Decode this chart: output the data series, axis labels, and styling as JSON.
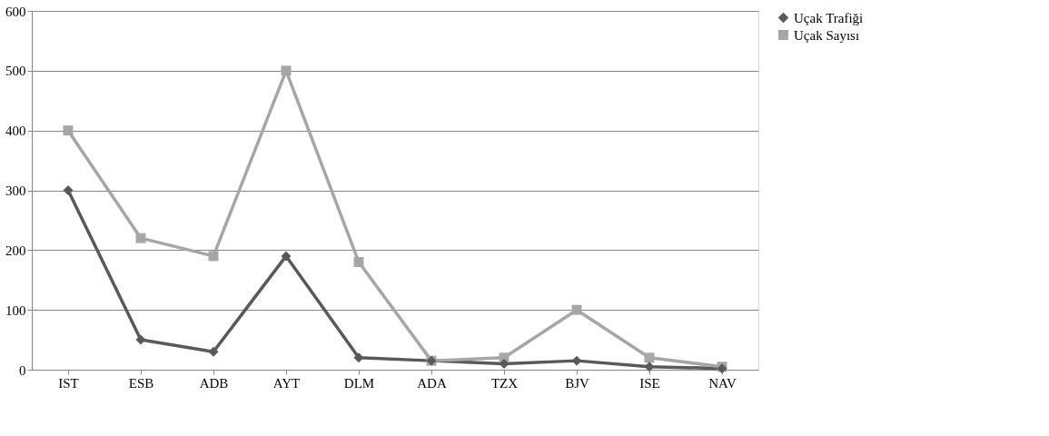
{
  "chart_data": {
    "type": "line",
    "categories": [
      "IST",
      "ESB",
      "ADB",
      "AYT",
      "DLM",
      "ADA",
      "TZX",
      "BJV",
      "ISE",
      "NAV"
    ],
    "series": [
      {
        "name": "Uçak Trafiği",
        "color": "#595959",
        "marker": "diamond",
        "values": [
          300,
          50,
          30,
          190,
          20,
          15,
          10,
          15,
          5,
          2
        ]
      },
      {
        "name": "Uçak Sayısı",
        "color": "#a6a6a6",
        "marker": "square",
        "values": [
          400,
          220,
          190,
          500,
          180,
          15,
          20,
          100,
          20,
          5
        ]
      }
    ],
    "ylim": [
      0,
      600
    ],
    "yticks": [
      0,
      100,
      200,
      300,
      400,
      500,
      600
    ],
    "grid": "y",
    "legend": "right",
    "line_style": "solid"
  }
}
